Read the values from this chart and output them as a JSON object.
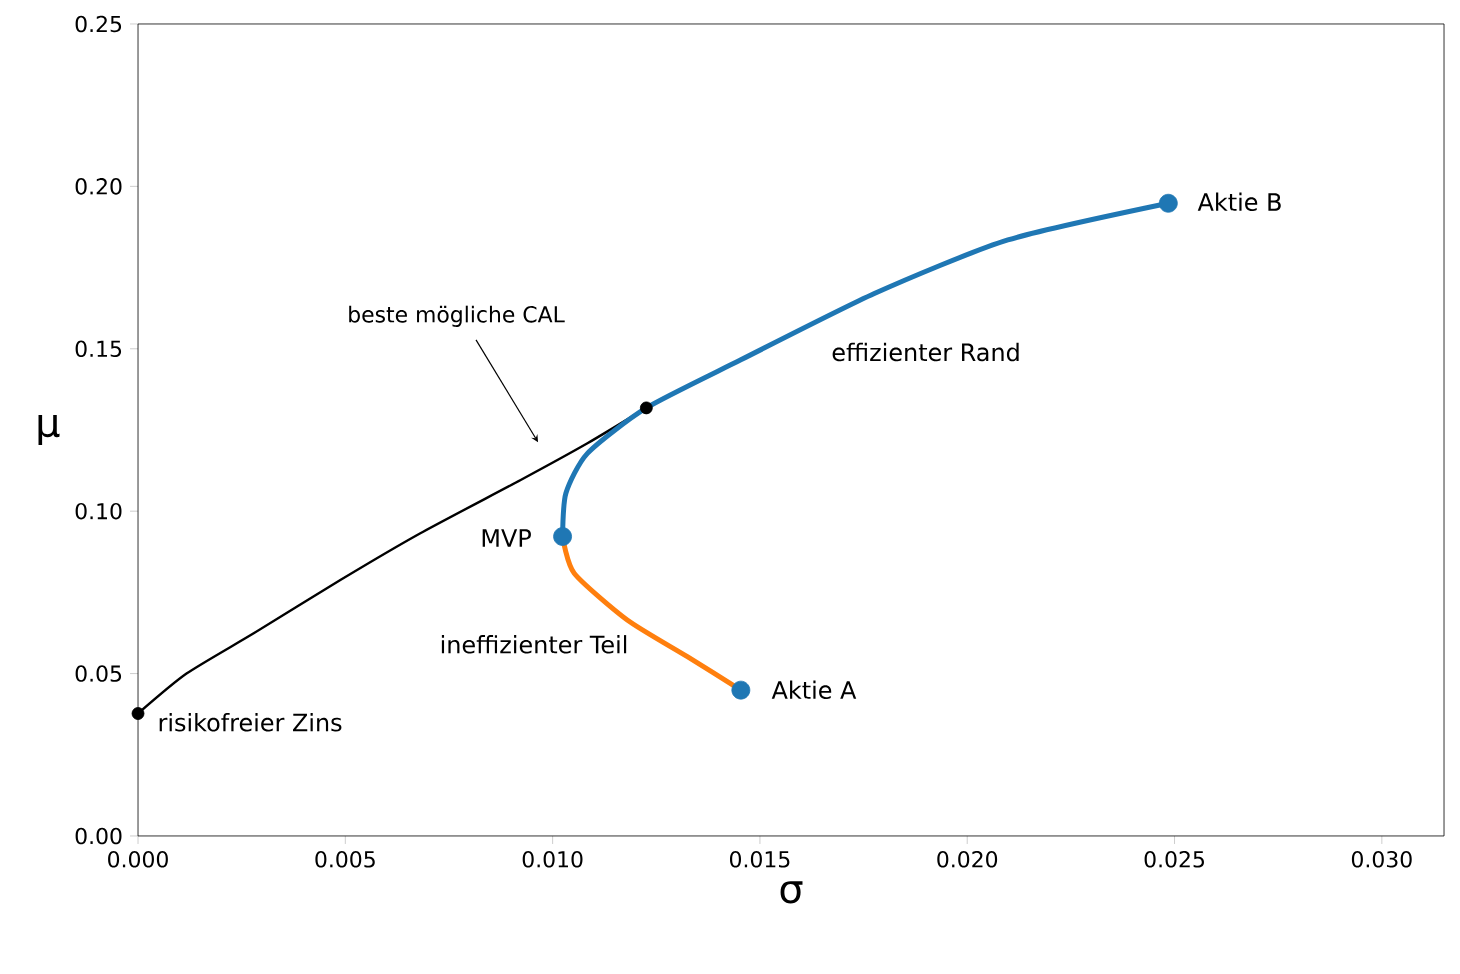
{
  "chart_data": {
    "type": "line",
    "xlabel": "σ",
    "ylabel": "μ",
    "xlim": [
      0,
      0.0315
    ],
    "ylim": [
      0,
      0.25
    ],
    "xticks": [
      {
        "value": 0,
        "label": "0.000"
      },
      {
        "value": 0.005,
        "label": "0.005"
      },
      {
        "value": 0.01,
        "label": "0.010"
      },
      {
        "value": 0.015,
        "label": "0.015"
      },
      {
        "value": 0.02,
        "label": "0.020"
      },
      {
        "value": 0.025,
        "label": "0.025"
      },
      {
        "value": 0.03,
        "label": "0.030"
      }
    ],
    "yticks": [
      {
        "value": 0,
        "label": "0.00"
      },
      {
        "value": 0.05,
        "label": "0.05"
      },
      {
        "value": 0.1,
        "label": "0.10"
      },
      {
        "value": 0.15,
        "label": "0.15"
      },
      {
        "value": 0.2,
        "label": "0.20"
      },
      {
        "value": 0.25,
        "label": "0.25"
      }
    ],
    "series": [
      {
        "color": "#000000",
        "x": [
          0,
          0.00117,
          0.00279,
          0.00488,
          0.00681,
          0.00923,
          0.01084,
          0.01226
        ],
        "values": [
          0.0377,
          0.05,
          0.0624,
          0.0788,
          0.0932,
          0.1096,
          0.1209,
          0.1318
        ]
      },
      {
        "color": "#1f77b4",
        "x": [
          0.01024,
          0.01032,
          0.01084,
          0.01226,
          0.01454,
          0.01776,
          0.02098,
          0.02485
        ],
        "values": [
          0.0922,
          0.1055,
          0.1178,
          0.1318,
          0.1466,
          0.167,
          0.1835,
          0.1948
        ]
      },
      {
        "color": "#ff7f0e",
        "x": [
          0.01024,
          0.01052,
          0.0118,
          0.01325,
          0.01454
        ],
        "values": [
          0.0922,
          0.0809,
          0.0665,
          0.0552,
          0.0449
        ]
      },
      {
        "type": "scatter",
        "color": "#1f77b4",
        "marker": "circle",
        "x": [
          0.01024,
          0.01454,
          0.02485
        ],
        "values": [
          0.0922,
          0.0449,
          0.1948
        ]
      },
      {
        "type": "scatter",
        "color": "#000000",
        "marker": "circle",
        "x": [
          0,
          0.01226
        ],
        "values": [
          0.0377,
          0.1318
        ]
      }
    ],
    "annotations": [
      "beste mögliche CAL",
      "MVP",
      "Aktie A",
      "Aktie B",
      "risikofreier Zins",
      "effizienter Rand",
      "ineffizienter Teil"
    ]
  }
}
